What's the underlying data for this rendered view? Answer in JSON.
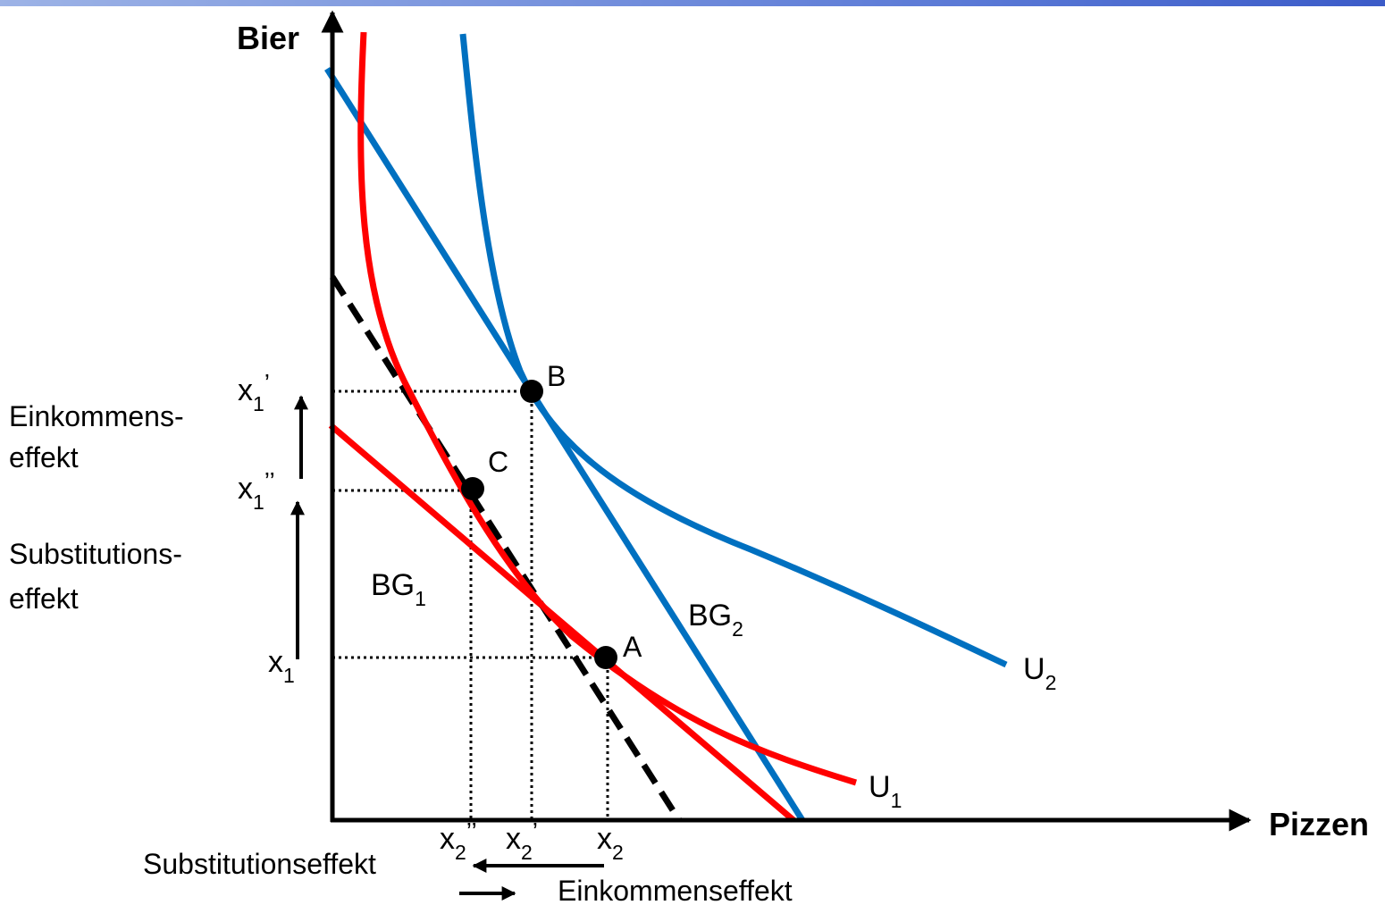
{
  "axes": {
    "y_label": "Bier",
    "x_label": "Pizzen"
  },
  "points": {
    "a": "A",
    "b": "B",
    "c": "C"
  },
  "curves": {
    "u1": {
      "base": "U",
      "sub": "1"
    },
    "u2": {
      "base": "U",
      "sub": "2"
    },
    "bg1": {
      "base": "BG",
      "sub": "1"
    },
    "bg2": {
      "base": "BG",
      "sub": "2"
    }
  },
  "y_ticks": {
    "x1_prime": {
      "base": "x",
      "sub": "1",
      "sup": "’"
    },
    "x1_dprime": {
      "base": "x",
      "sub": "1",
      "sup": "’’"
    },
    "x1": {
      "base": "x",
      "sub": "1"
    }
  },
  "x_ticks": {
    "x2_dprime": {
      "base": "x",
      "sub": "2",
      "sup": "’’"
    },
    "x2_prime": {
      "base": "x",
      "sub": "2",
      "sup": "’"
    },
    "x2": {
      "base": "x",
      "sub": "2"
    }
  },
  "effects": {
    "income_left_line1": "Einkommens-",
    "income_left_line2": "effekt",
    "subst_left_line1": "Substitutions-",
    "subst_left_line2": "effekt",
    "subst_bottom": "Substitutionseffekt",
    "income_bottom": "Einkommenseffekt"
  },
  "colors": {
    "red": "#ff0000",
    "blue": "#0070c0",
    "black": "#000000",
    "header_bar": "#5a79d6"
  }
}
